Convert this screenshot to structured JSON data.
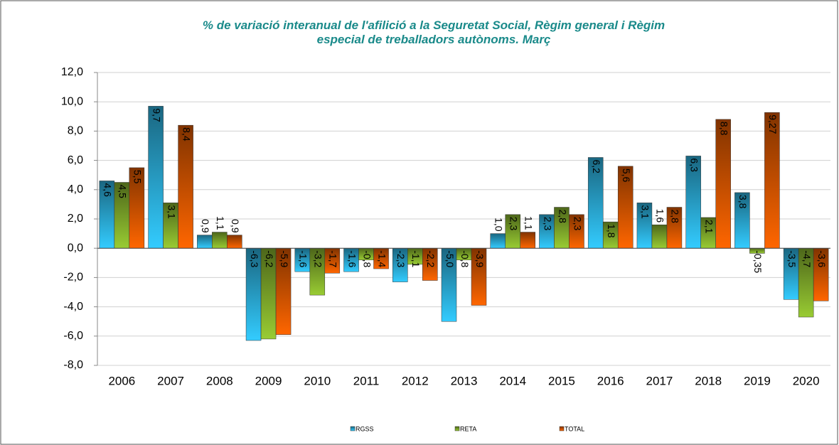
{
  "chart_data": {
    "type": "bar",
    "title": "% de variació interanual de l'afilició a la Seguretat Social, Règim general i Règim especial de treballadors autònoms. Març",
    "categories": [
      "2006",
      "2007",
      "2008",
      "2009",
      "2010",
      "2011",
      "2012",
      "2013",
      "2014",
      "2015",
      "2016",
      "2017",
      "2018",
      "2019",
      "2020"
    ],
    "series": [
      {
        "name": "RGSS",
        "color": "#33ccff",
        "values": [
          4.6,
          9.7,
          0.9,
          -6.3,
          -1.6,
          -1.6,
          -2.3,
          -5.0,
          1.0,
          2.3,
          6.2,
          3.1,
          6.3,
          3.8,
          -3.5
        ],
        "value_labels": [
          "4,6",
          "9,7",
          "0,9",
          "-6,3",
          "-1,6",
          "-1,6",
          "-2,3",
          "-5,0",
          "1,0",
          "2,3",
          "6,2",
          "3,1",
          "6,3",
          "3,8",
          "-3,5"
        ]
      },
      {
        "name": "RETA",
        "color": "#99cc33",
        "values": [
          4.5,
          3.1,
          1.1,
          -6.2,
          -3.2,
          -0.8,
          -1.1,
          -0.8,
          2.3,
          2.8,
          1.8,
          1.6,
          2.1,
          -0.35,
          -4.7
        ],
        "value_labels": [
          "4,5",
          "3,1",
          "1,1",
          "-6,2",
          "-3,2",
          "-0,8",
          "-1,1",
          "-0,8",
          "2,3",
          "2,8",
          "1,8",
          "1,6",
          "2,1",
          "-0,35",
          "-4,7"
        ]
      },
      {
        "name": "TOTAL",
        "color": "#ff6600",
        "values": [
          5.5,
          8.4,
          0.9,
          -5.9,
          -1.7,
          -1.4,
          -2.2,
          -3.9,
          1.1,
          2.3,
          5.6,
          2.8,
          8.8,
          9.27,
          -3.6
        ],
        "value_labels": [
          "5,5",
          "8,4",
          "0,9",
          "-5,9",
          "-1,7",
          "-1,4",
          "-2,2",
          "-3,9",
          "1,1",
          "2,3",
          "5,6",
          "2,8",
          "8,8",
          "9,27",
          "-3,6"
        ]
      }
    ],
    "ylim": [
      -8,
      12
    ],
    "yticks": [
      {
        "value": -8,
        "label": "-8,0"
      },
      {
        "value": -6,
        "label": "-6,0"
      },
      {
        "value": -4,
        "label": "-4,0"
      },
      {
        "value": -2,
        "label": "-2,0"
      },
      {
        "value": 0,
        "label": "0,0"
      },
      {
        "value": 2,
        "label": "2,0"
      },
      {
        "value": 4,
        "label": "4,0"
      },
      {
        "value": 6,
        "label": "6,0"
      },
      {
        "value": 8,
        "label": "8,0"
      },
      {
        "value": 10,
        "label": "10,0"
      },
      {
        "value": 12,
        "label": "12,0"
      }
    ],
    "grid": true,
    "legend": "bottom"
  }
}
